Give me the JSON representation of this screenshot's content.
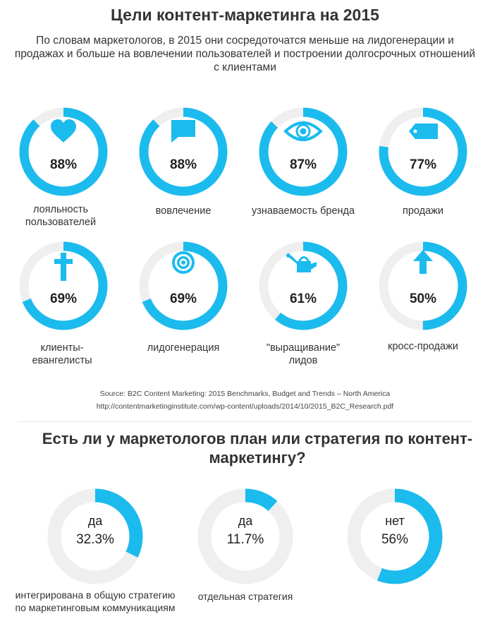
{
  "title": "Цели контент-маркетинга на 2015",
  "subtitle": "По словам маркетологов, в 2015 они сосредоточатся меньше на лидогенерации и продажах и больше на вовлечении пользователей и построении долгосрочных отношений с клиентами",
  "colors": {
    "accent": "#1bbbee",
    "track": "#efefef"
  },
  "goals_icons": [
    "heart-icon",
    "speech-bubble-icon",
    "eye-icon",
    "price-tag-icon",
    "cross-icon",
    "target-icon",
    "watering-can-icon",
    "arrow-up-icon"
  ],
  "source": {
    "line1": "Source: B2C Content Marketing: 2015 Benchmarks, Budget and Trends – North America",
    "line2": "http://contentmarketinginstitute.com/wp-content/uploads/2014/10/2015_B2C_Research.pdf"
  },
  "section2_title": "Есть ли у маркетологов план или стратегия по контент-маркетингу?",
  "chart_data": [
    {
      "type": "pie",
      "title": "Цели контент-маркетинга на 2015",
      "categories": [
        "лояльность пользователей",
        "вовлечение",
        "узнаваемость бренда",
        "продажи",
        "клиенты-евангелисты",
        "лидогенерация",
        "\"выращивание\" лидов",
        "кросс-продажи"
      ],
      "values": [
        88,
        88,
        87,
        77,
        69,
        69,
        61,
        50
      ],
      "labels": [
        "88%",
        "88%",
        "87%",
        "77%",
        "69%",
        "69%",
        "61%",
        "50%"
      ]
    },
    {
      "type": "pie",
      "title": "Есть ли у маркетологов план или стратегия по контент-маркетингу?",
      "categories": [
        "интегрирована в общую стратегию по маркетинговым коммуникациям",
        "отдельная стратегия",
        ""
      ],
      "answers": [
        "да",
        "да",
        "нет"
      ],
      "values": [
        32.3,
        11.7,
        56
      ],
      "labels": [
        "32.3%",
        "11.7%",
        "56%"
      ]
    }
  ]
}
